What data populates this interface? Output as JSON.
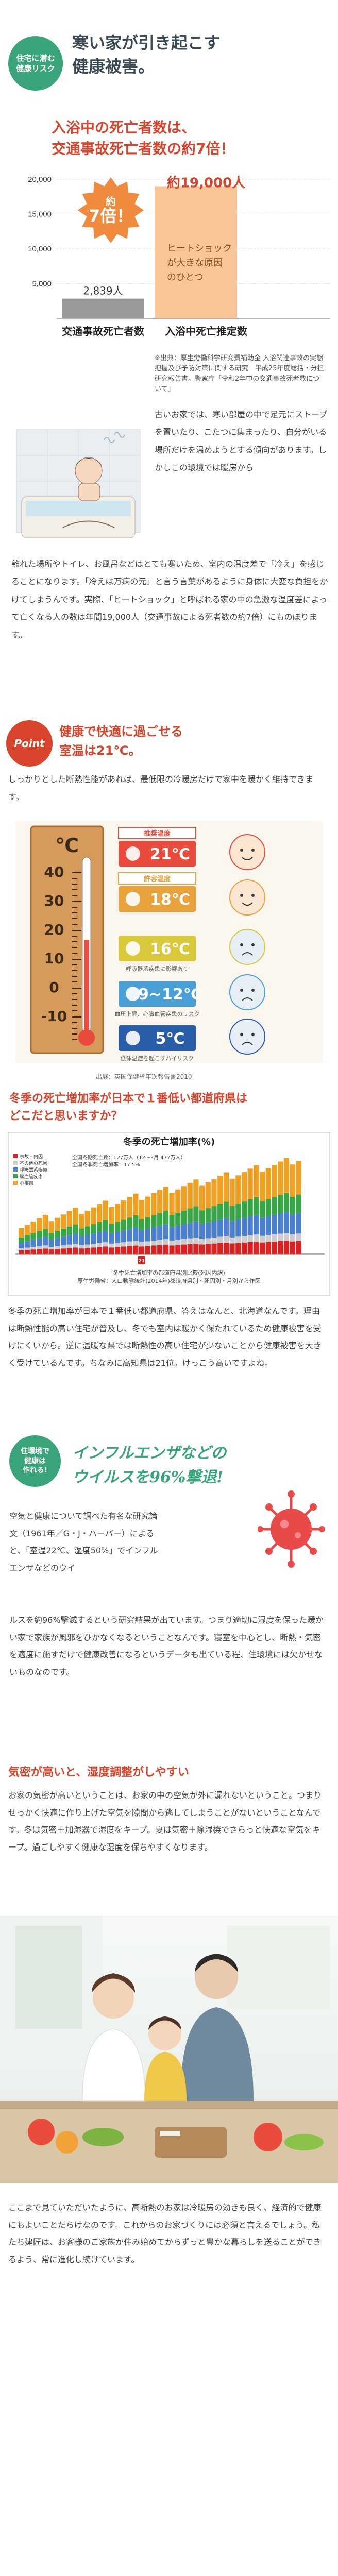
{
  "header": {
    "badge_line1": "住宅に潜む",
    "badge_line2": "健康リスク",
    "title_line1": "寒い家が引き起こす",
    "title_line2": "健康被害。"
  },
  "death_chart": {
    "title_line1": "入浴中の死亡者数は、",
    "title_line2": "交通事故死亡者数の約7倍！",
    "times_label": "約",
    "times_value": "7倍！",
    "bar1_value_label": "2,839人",
    "bar2_value_label": "約19,000人",
    "bar2_annotation": "ヒートショックが大きな原因のひとつ",
    "bar1_caption": "交通事故死亡者数",
    "bar2_caption": "入浴中死亡推定数",
    "note": "※出典：厚生労働科学研究費補助金 入浴関連事故の実態把握及び予防対策に関する研究　平成25年度総括・分担研究報告書。警察庁「令和2年中の交通事故死者数について」"
  },
  "chart_data": [
    {
      "type": "bar",
      "categories": [
        "交通事故死亡者数",
        "入浴中死亡推定数"
      ],
      "values": [
        2839,
        19000
      ],
      "ylim": [
        0,
        20000
      ],
      "yticks": [
        "20,000",
        "15,000",
        "10,000",
        "5,000"
      ],
      "colors": [
        "#9a9a9a",
        "#f4a460"
      ]
    },
    {
      "type": "bar",
      "title": "冬季の死亡増加率(%)",
      "legend": [
        "■事故・内因",
        "不の他の死因",
        "■呼吸器系疾患",
        "■脳血管疾患",
        "■心疾患"
      ],
      "summary_line1": "全国冬期死亡数：127万人（12〜3月 477万人）",
      "summary_line2": "全国冬季死亡増加率：17.5%",
      "source": "冬季死亡増加率の都道府県別比較(死因内訳)\n厚生労働省：人口動態統計(2014年)都道府県別・死因別・月別から作図",
      "highlight": "21",
      "series_colors": [
        "#e02020",
        "#cccccc",
        "#4b7fd1",
        "#35a845",
        "#f0a020"
      ]
    }
  ],
  "bath": {
    "text1": "古いお家では、寒い部屋の中で足元にストーブを置いたり、こたつに集まったり、自分がいる場所だけを温めようとする傾向があります。しかしこの環境では暖房から",
    "text2": "離れた場所やトイレ、お風呂などはとても寒いため、室内の温度差で「冷え」を感じることになります。「冷えは万病の元」と言う言葉があるように身体に大変な負担をかけてしまうんです。実際、「ヒートショック」と呼ばれる家の中の急激な温度差によって亡くなる人の数は年間19,000人（交通事故による死者数の約7倍）にものぼります。"
  },
  "point": {
    "badge": "Point",
    "title_line1": "健康で快適に過ごせる",
    "title_line2": "室温は21℃。",
    "text": "しっかりとした断熱性能があれば、最低限の冷暖房だけで家中を暖かく維持できます。",
    "thermo_unit": "℃",
    "scale_labels": [
      "40",
      "30",
      "20",
      "10",
      "0",
      "-10"
    ],
    "levels": [
      {
        "caption": "推奨温度",
        "value": "21℃",
        "color": "#e94b3c",
        "note": ""
      },
      {
        "caption": "許容温度",
        "value": "18℃",
        "color": "#e8a33c",
        "note": ""
      },
      {
        "caption": "",
        "value": "16℃",
        "color": "#d8c83a",
        "note": "呼吸器系疾患に影響あり"
      },
      {
        "caption": "",
        "value": "9~12℃",
        "color": "#4a9fd4",
        "note": "血圧上昇、心臓血管疾患のリスク"
      },
      {
        "caption": "",
        "value": "5℃",
        "color": "#2a5ea8",
        "note": "低体温症を起こすハイリスク"
      }
    ],
    "source": "出展：英国保健省年次報告書2010"
  },
  "prefecture": {
    "title_line1": "冬季の死亡増加率が日本で１番低い都道府県は",
    "title_line2": "どこだと思いますか？",
    "text": "冬季の死亡増加率が日本で１番低い都道府県、答えはなんと、北海道なんです。理由は断熱性能の高い住宅が普及し、冬でも室内は暖かく保たれているため健康被害を受けにくいから。逆に温暖な県では断熱性の高い住宅が少ないことから健康被害を大きく受けているんです。ちなみに高知県は21位。けっこう高いですよね。"
  },
  "flu": {
    "badge_line1": "住環境で",
    "badge_line2": "健康は",
    "badge_line3": "作れる!",
    "title_line1": "インフルエンザなどの",
    "title_line2": "ウイルスを96%撃退!",
    "text1": "空気と健康について調べた有名な研究論文（1961年／G・J・ハーパー）によると、「室温22℃、湿度50%」でインフルエンザなどのウイ",
    "text2": "ルスを約96%撃滅するという研究結果が出ています。つまり適切に湿度を保った暖かい家で家族が風邪をひかなくなるということなんです。寝室を中心とし、断熱・気密を適度に施すだけで健康改善になるというデータも出ている程、住環境には欠かせないものなのです。"
  },
  "humidity": {
    "title": "気密が高いと、湿度調整がしやすい",
    "text": "お家の気密が高いということは、お家の中の空気が外に漏れないということ。つまりせっかく快適に作り上げた空気を隙間から逃してしまうことがないということなんです。冬は気密＋加湿器で湿度をキープ。夏は気密＋除湿機でさらっと快適な空気をキープ。過ごしやすく健康な湿度を保ちやすくなります。",
    "closing": "ここまで見ていただいたように、高断熱のお家は冷暖房の効きも良く、経済的で健康にもよいことだらけなのです。これからのお家づくりには必須と言えるでしょう。私たち建匠は、お客様のご家族が住み始めてからずっと豊かな暮らしを送ることができるよう、常に進化し続けています。"
  }
}
